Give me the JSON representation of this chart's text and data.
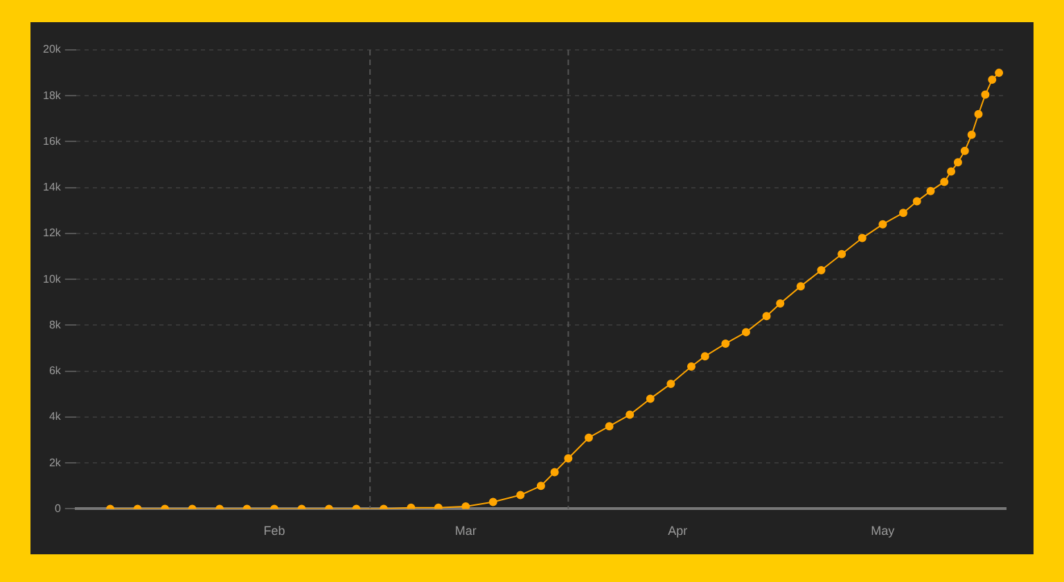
{
  "chart_data": {
    "type": "line",
    "marker": "circle",
    "grid": "y",
    "legend": false,
    "x": [
      "--01-08",
      "--01-12",
      "--01-16",
      "--01-20",
      "--01-24",
      "--01-28",
      "--02-01",
      "--02-05",
      "--02-09",
      "--02-13",
      "--02-17",
      "--02-21",
      "--02-25",
      "--03-01",
      "--03-05",
      "--03-09",
      "--03-12",
      "--03-14",
      "--03-16",
      "--03-19",
      "--03-22",
      "--03-25",
      "--03-28",
      "--03-31",
      "--04-03",
      "--04-05",
      "--04-08",
      "--04-11",
      "--04-14",
      "--04-16",
      "--04-19",
      "--04-22",
      "--04-25",
      "--04-28",
      "--05-01",
      "--05-04",
      "--05-06",
      "--05-08",
      "--05-10",
      "--05-11",
      "--05-12",
      "--05-13",
      "--05-14",
      "--05-15",
      "--05-16",
      "--05-17",
      "--05-18"
    ],
    "series": [
      {
        "color": "#ffa500",
        "values": [
          0,
          0,
          0,
          0,
          0,
          0,
          0,
          0,
          0,
          0,
          0,
          50,
          50,
          100,
          300,
          600,
          1000,
          1600,
          2200,
          3100,
          3600,
          4100,
          4800,
          5450,
          6200,
          6650,
          7200,
          7700,
          8400,
          8950,
          9700,
          10400,
          11100,
          11800,
          12400,
          12900,
          13400,
          13850,
          14250,
          14700,
          15100,
          15600,
          16300,
          17200,
          18050,
          18700,
          19000
        ]
      }
    ],
    "xlim": [
      "--01-03",
      "--05-19"
    ],
    "xticks": [
      {
        "value": "--02-01",
        "label": "Feb"
      },
      {
        "value": "--03-01",
        "label": "Mar"
      },
      {
        "value": "--04-01",
        "label": "Apr"
      },
      {
        "value": "--05-01",
        "label": "May"
      }
    ],
    "ylim": [
      0,
      20000
    ],
    "yticks": [
      0,
      {
        "value": 2000,
        "label": "2k"
      },
      {
        "value": 4000,
        "label": "4k"
      },
      {
        "value": 6000,
        "label": "6k"
      },
      {
        "value": 8000,
        "label": "8k"
      },
      {
        "value": 10000,
        "label": "10k"
      },
      {
        "value": 12000,
        "label": "12k"
      },
      {
        "value": 14000,
        "label": "14k"
      },
      {
        "value": 16000,
        "label": "16k"
      },
      {
        "value": 18000,
        "label": "18k"
      },
      {
        "value": 20000,
        "label": "20k"
      }
    ],
    "ref_lines": [
      {
        "axis": "x",
        "value": "--02-15",
        "line_style": "dashed"
      },
      {
        "axis": "x",
        "value": "--03-16",
        "line_style": "dashed"
      }
    ]
  }
}
